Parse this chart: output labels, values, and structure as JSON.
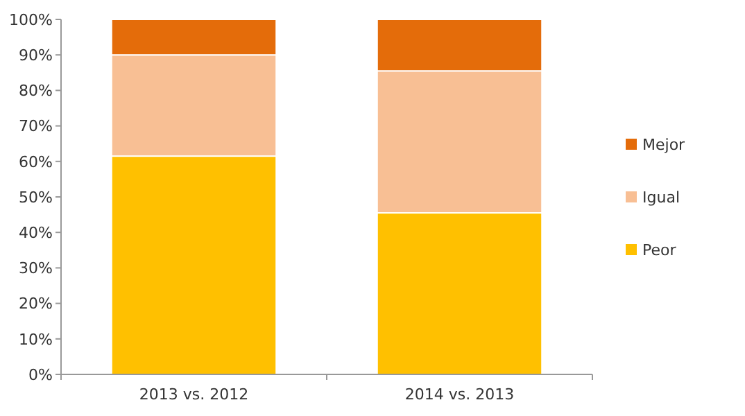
{
  "chart_data": {
    "type": "bar",
    "stacked": true,
    "categories": [
      "2013 vs. 2012",
      "2014 vs. 2013"
    ],
    "series": [
      {
        "name": "Peor",
        "color": "#ffc000",
        "values": [
          61.5,
          45.5
        ]
      },
      {
        "name": "Igual",
        "color": "#f8bf94",
        "values": [
          28.5,
          40
        ]
      },
      {
        "name": "Mejor",
        "color": "#e46c0a",
        "values": [
          10,
          14.5
        ]
      }
    ],
    "ylim": [
      0,
      100
    ],
    "yticks": [
      {
        "value": 0,
        "label": "0%"
      },
      {
        "value": 10,
        "label": "10%"
      },
      {
        "value": 20,
        "label": "20%"
      },
      {
        "value": 30,
        "label": "30%"
      },
      {
        "value": 40,
        "label": "40%"
      },
      {
        "value": 50,
        "label": "50%"
      },
      {
        "value": 60,
        "label": "60%"
      },
      {
        "value": 70,
        "label": "70%"
      },
      {
        "value": 80,
        "label": "80%"
      },
      {
        "value": 90,
        "label": "90%"
      },
      {
        "value": 100,
        "label": "100%"
      }
    ],
    "legend": "right"
  }
}
